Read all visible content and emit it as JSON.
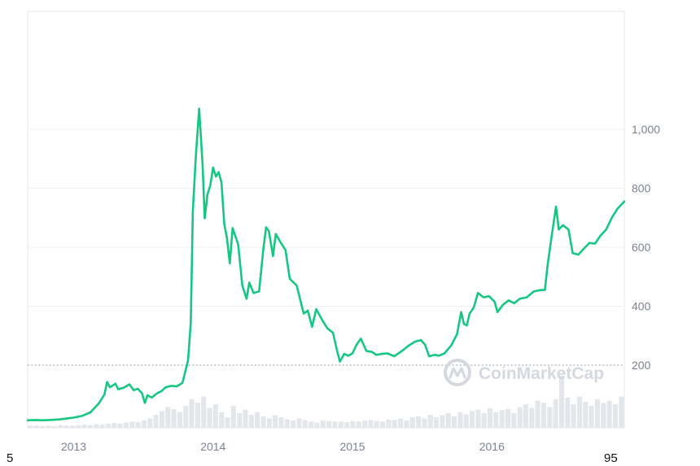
{
  "chart_data": {
    "type": "line",
    "title": "",
    "xlabel": "",
    "ylabel": "",
    "x_ticks": [
      "2013",
      "2014",
      "2015",
      "2016"
    ],
    "y_ticks": [
      "200",
      "400",
      "600",
      "800",
      "1,000"
    ],
    "ylim": [
      0,
      1200
    ],
    "xlim": [
      2012.67,
      2016.95
    ],
    "baseline_value": 5,
    "grid": true,
    "line_color": "#16c784",
    "watermark": "CoinMarketCap",
    "series": [
      {
        "points": [
          [
            2012.67,
            13
          ],
          [
            2012.72,
            14
          ],
          [
            2012.78,
            13
          ],
          [
            2012.83,
            14
          ],
          [
            2012.9,
            16
          ],
          [
            2012.96,
            20
          ],
          [
            2013.0,
            22
          ],
          [
            2013.06,
            28
          ],
          [
            2013.12,
            40
          ],
          [
            2013.18,
            70
          ],
          [
            2013.22,
            100
          ],
          [
            2013.24,
            143
          ],
          [
            2013.26,
            125
          ],
          [
            2013.3,
            137
          ],
          [
            2013.32,
            118
          ],
          [
            2013.36,
            124
          ],
          [
            2013.4,
            135
          ],
          [
            2013.43,
            115
          ],
          [
            2013.46,
            120
          ],
          [
            2013.49,
            105
          ],
          [
            2013.51,
            72
          ],
          [
            2013.53,
            98
          ],
          [
            2013.56,
            90
          ],
          [
            2013.6,
            105
          ],
          [
            2013.63,
            112
          ],
          [
            2013.66,
            125
          ],
          [
            2013.7,
            130
          ],
          [
            2013.74,
            128
          ],
          [
            2013.78,
            140
          ],
          [
            2013.82,
            215
          ],
          [
            2013.84,
            345
          ],
          [
            2013.855,
            720
          ],
          [
            2013.875,
            900
          ],
          [
            2013.9,
            1070
          ],
          [
            2013.925,
            880
          ],
          [
            2013.94,
            698
          ],
          [
            2013.96,
            780
          ],
          [
            2013.98,
            810
          ],
          [
            2014.0,
            870
          ],
          [
            2014.02,
            840
          ],
          [
            2014.04,
            855
          ],
          [
            2014.06,
            820
          ],
          [
            2014.08,
            680
          ],
          [
            2014.1,
            630
          ],
          [
            2014.12,
            545
          ],
          [
            2014.14,
            665
          ],
          [
            2014.18,
            610
          ],
          [
            2014.21,
            470
          ],
          [
            2014.24,
            425
          ],
          [
            2014.26,
            480
          ],
          [
            2014.29,
            445
          ],
          [
            2014.33,
            450
          ],
          [
            2014.36,
            590
          ],
          [
            2014.38,
            668
          ],
          [
            2014.4,
            655
          ],
          [
            2014.43,
            570
          ],
          [
            2014.45,
            645
          ],
          [
            2014.48,
            620
          ],
          [
            2014.52,
            590
          ],
          [
            2014.55,
            493
          ],
          [
            2014.6,
            470
          ],
          [
            2014.65,
            375
          ],
          [
            2014.68,
            385
          ],
          [
            2014.71,
            330
          ],
          [
            2014.74,
            390
          ],
          [
            2014.78,
            355
          ],
          [
            2014.82,
            325
          ],
          [
            2014.86,
            310
          ],
          [
            2014.89,
            248
          ],
          [
            2014.91,
            212
          ],
          [
            2014.94,
            238
          ],
          [
            2014.97,
            232
          ],
          [
            2015.0,
            240
          ],
          [
            2015.03,
            270
          ],
          [
            2015.06,
            290
          ],
          [
            2015.1,
            248
          ],
          [
            2015.14,
            245
          ],
          [
            2015.17,
            235
          ],
          [
            2015.21,
            238
          ],
          [
            2015.25,
            240
          ],
          [
            2015.3,
            230
          ],
          [
            2015.36,
            250
          ],
          [
            2015.4,
            265
          ],
          [
            2015.45,
            280
          ],
          [
            2015.49,
            285
          ],
          [
            2015.52,
            270
          ],
          [
            2015.55,
            230
          ],
          [
            2015.59,
            235
          ],
          [
            2015.62,
            232
          ],
          [
            2015.66,
            240
          ],
          [
            2015.71,
            268
          ],
          [
            2015.75,
            305
          ],
          [
            2015.78,
            380
          ],
          [
            2015.8,
            340
          ],
          [
            2015.82,
            335
          ],
          [
            2015.84,
            375
          ],
          [
            2015.87,
            395
          ],
          [
            2015.9,
            445
          ],
          [
            2015.94,
            430
          ],
          [
            2015.98,
            434
          ],
          [
            2016.02,
            415
          ],
          [
            2016.04,
            380
          ],
          [
            2016.08,
            405
          ],
          [
            2016.12,
            420
          ],
          [
            2016.16,
            410
          ],
          [
            2016.2,
            425
          ],
          [
            2016.25,
            430
          ],
          [
            2016.3,
            450
          ],
          [
            2016.35,
            455
          ],
          [
            2016.38,
            455
          ],
          [
            2016.4,
            540
          ],
          [
            2016.43,
            640
          ],
          [
            2016.46,
            738
          ],
          [
            2016.48,
            660
          ],
          [
            2016.51,
            675
          ],
          [
            2016.55,
            660
          ],
          [
            2016.58,
            580
          ],
          [
            2016.62,
            575
          ],
          [
            2016.66,
            595
          ],
          [
            2016.7,
            615
          ],
          [
            2016.74,
            612
          ],
          [
            2016.78,
            640
          ],
          [
            2016.82,
            660
          ],
          [
            2016.86,
            700
          ],
          [
            2016.9,
            730
          ],
          [
            2016.95,
            755
          ]
        ]
      }
    ],
    "volume": [
      4,
      4,
      3,
      4,
      3,
      5,
      4,
      4,
      5,
      6,
      5,
      7,
      6,
      8,
      9,
      8,
      10,
      12,
      11,
      14,
      18,
      25,
      32,
      40,
      36,
      30,
      42,
      55,
      48,
      60,
      38,
      45,
      30,
      20,
      42,
      28,
      35,
      25,
      30,
      22,
      18,
      24,
      20,
      16,
      14,
      18,
      15,
      12,
      10,
      14,
      13,
      12,
      12,
      11,
      13,
      12,
      14,
      15,
      13,
      12,
      16,
      15,
      18,
      14,
      20,
      22,
      18,
      25,
      20,
      24,
      28,
      22,
      30,
      26,
      32,
      35,
      28,
      38,
      30,
      34,
      36,
      28,
      40,
      45,
      38,
      52,
      48,
      40,
      55,
      100,
      58,
      45,
      60,
      50,
      42,
      55,
      48,
      52,
      45,
      60
    ]
  },
  "corner_labels": {
    "left": "5",
    "right": "95"
  }
}
